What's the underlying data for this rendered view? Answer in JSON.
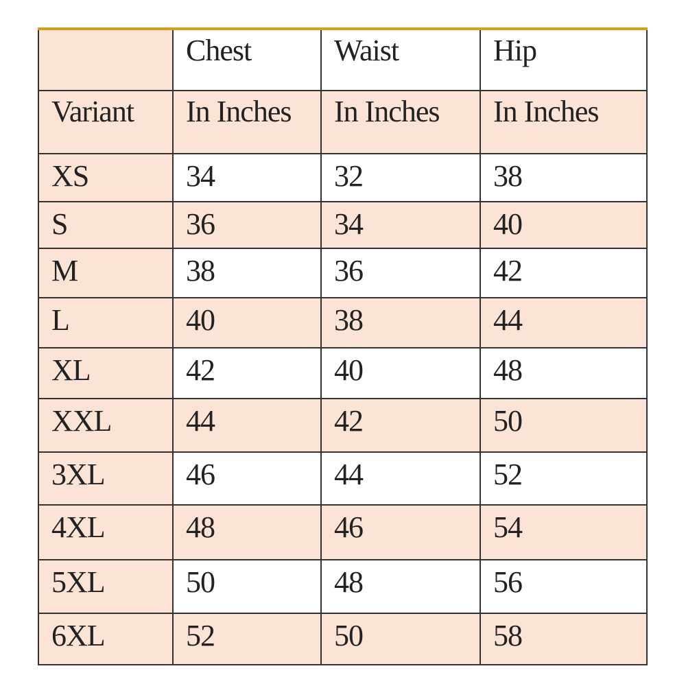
{
  "table": {
    "header_row1": [
      "",
      "Chest",
      "Waist",
      "Hip"
    ],
    "header_row2": [
      "Variant",
      "In Inches",
      "In Inches",
      "In Inches"
    ],
    "rows": [
      [
        "XS",
        "34",
        "32",
        "38"
      ],
      [
        "S",
        "36",
        "34",
        "40"
      ],
      [
        "M",
        "38",
        "36",
        "42"
      ],
      [
        "L",
        "40",
        "38",
        "44"
      ],
      [
        "XL",
        "42",
        "40",
        "48"
      ],
      [
        "XXL",
        "44",
        "42",
        "50"
      ],
      [
        "3XL",
        "46",
        "44",
        "52"
      ],
      [
        "4XL",
        "48",
        "46",
        "54"
      ],
      [
        "5XL",
        "50",
        "48",
        "56"
      ],
      [
        "6XL",
        "52",
        "50",
        "58"
      ]
    ]
  },
  "colors": {
    "peach": "#fbe4d5",
    "white": "#ffffff",
    "top_border": "#d4a017",
    "grid": "#333333"
  }
}
